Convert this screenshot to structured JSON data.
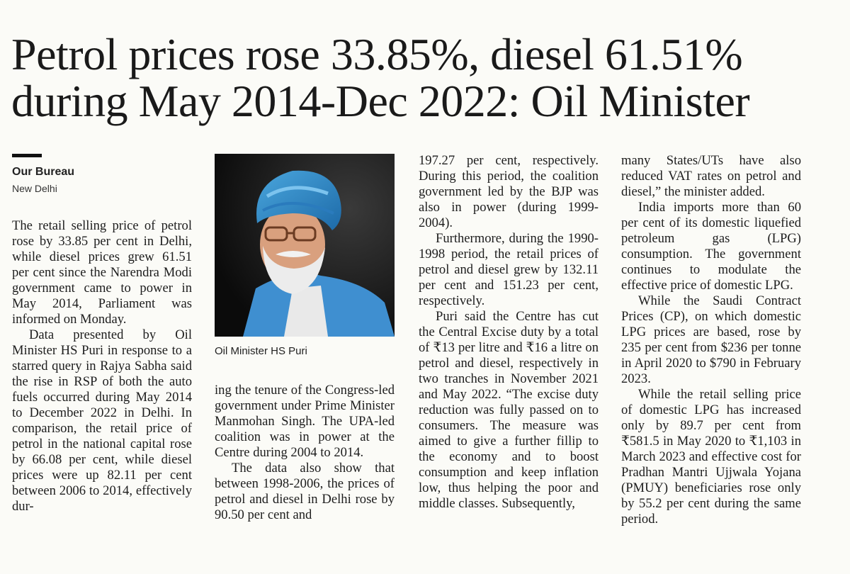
{
  "headline": {
    "line1": "Petrol prices rose 33.85%, diesel 61.51%",
    "line2": "during May 2014-Dec 2022: Oil Minister"
  },
  "byline": "Our Bureau",
  "dateline": "New Delhi",
  "photo_caption": "Oil Minister HS Puri",
  "columns": {
    "col1": [
      "The retail selling price of petrol rose by 33.85 per cent in Delhi, while diesel prices grew 61.51 per cent since the Narendra Modi government came to power in May 2014, Parliament was informed on Monday.",
      "Data presented by Oil Minister HS Puri in response to a starred query in Rajya Sabha said the rise in RSP of both the auto fuels occurred during May 2014 to December 2022 in Delhi. In comparison, the retail price of petrol in the national capital rose by 66.08 per cent, while diesel prices were up 82.11 per cent between 2006 to 2014, effectively dur-"
    ],
    "col2": [
      "ing the tenure of the Congress-led government under Prime Minister Manmohan Singh. The UPA-led coalition was in power at the Centre during 2004 to 2014.",
      "The data also show that between 1998-2006, the prices of petrol and diesel in Delhi rose by 90.50 per cent and"
    ],
    "col3": [
      "197.27 per cent, respectively. During this period, the coalition government led by the BJP was also in power (during 1999-2004).",
      "Furthermore, during the 1990-1998 period, the retail prices of petrol and diesel grew by 132.11 per cent and 151.23 per cent, respectively.",
      "Puri said the Centre has cut the Central Excise duty by a total of ₹13 per litre and ₹16 a litre on petrol and diesel, respectively in two tranches in November 2021 and May 2022. “The excise duty reduction was fully passed on to consumers. The measure was aimed to give a further fillip to the economy and to boost consumption and keep inflation low, thus helping the poor and middle classes. Subsequently,"
    ],
    "col4": [
      "many States/UTs have also reduced VAT rates on petrol and diesel,” the minister added.",
      "India imports more than 60 per cent of its domestic liquefied petroleum gas (LPG) consumption. The government continues to modulate the effective price of domestic LPG.",
      "While the Saudi Contract Prices (CP), on which domestic LPG prices are based, rose by 235 per cent from $236 per tonne in April 2020 to $790 in February 2023.",
      "While the retail selling price of domestic LPG has increased only by 89.7 per cent from ₹581.5 in May 2020 to ₹1,103 in March 2023 and effective cost for Pradhan Mantri Ujjwala Yojana (PMUY) beneficiaries rose only by 55.2 per cent during the same period."
    ]
  }
}
